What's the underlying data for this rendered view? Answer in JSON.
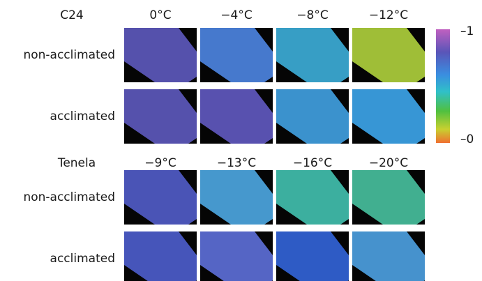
{
  "groups": [
    {
      "name": "C24",
      "temperatures": [
        "0°C",
        "−4°C",
        "−8°C",
        "−12°C"
      ],
      "rows": [
        "non-acclimated",
        "acclimated"
      ]
    },
    {
      "name": "Tenela",
      "temperatures": [
        "−9°C",
        "−13°C",
        "−16°C",
        "−20°C"
      ],
      "rows": [
        "non-acclimated",
        "acclimated"
      ]
    }
  ],
  "scale": {
    "top_label": "–1",
    "bottom_label": "–0"
  }
}
